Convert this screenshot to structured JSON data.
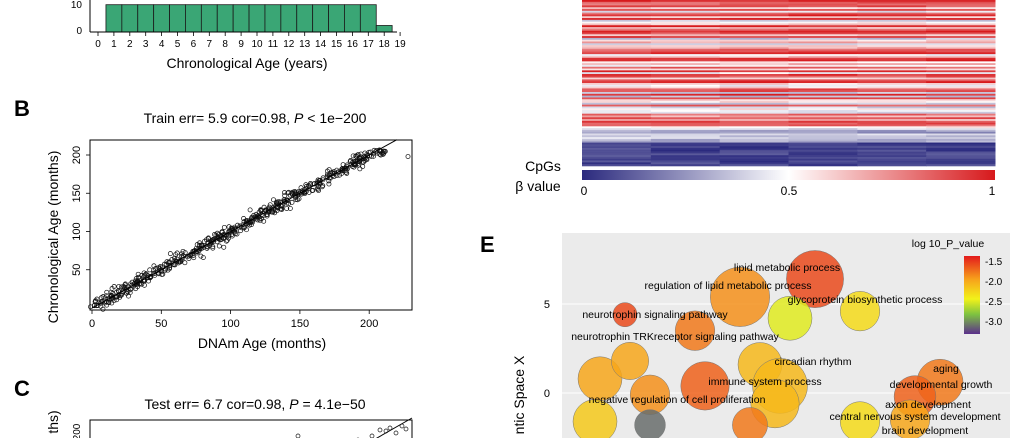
{
  "panelA": {
    "xlabel": "Chronological Age (years)",
    "yticks": [
      "10",
      "0"
    ],
    "categories": [
      "0",
      "1",
      "2",
      "3",
      "4",
      "5",
      "6",
      "7",
      "8",
      "9",
      "10",
      "11",
      "12",
      "13",
      "14",
      "15",
      "16",
      "17",
      "18",
      "19"
    ],
    "bar_color": "#3aa675"
  },
  "panelB": {
    "letter": "B",
    "title_prefix": "Train err= 5.9 cor=0.98, ",
    "title_p": "P",
    "title_suffix": " < 1e−200",
    "xlabel": "DNAm Age (months)",
    "ylabel": "Chronological Age (months)",
    "xticks": [
      "0",
      "50",
      "100",
      "150",
      "200"
    ],
    "yticks": [
      "50",
      "100",
      "150",
      "200"
    ]
  },
  "panelC": {
    "letter": "C",
    "title_prefix": "Test err= 6.7 cor=0.98, ",
    "title_p": "P",
    "title_suffix": " = 4.1e−50",
    "ylabel_partial": "ths)",
    "ytick": "200"
  },
  "panelD": {
    "row_label": "CpGs",
    "scale_label": "β value",
    "scale_ticks": [
      "0",
      "0.5",
      "1"
    ],
    "colors": {
      "low": "#2b2a7e",
      "mid": "#ffffff",
      "high": "#d7191c"
    }
  },
  "panelE": {
    "letter": "E",
    "ylabel_partial": "ntic Space X",
    "yticks": [
      "5",
      "0"
    ],
    "legend_title": "log 10_P_value",
    "legend_ticks": [
      "-1.5",
      "-2.0",
      "-2.5",
      "-3.0"
    ],
    "terms": [
      "lipid metabolic process",
      "regulation of lipid metabolic process",
      "glycoprotein biosynthetic process",
      "neurotrophin signaling pathway",
      "neurotrophin TRKreceptor signaling pathway",
      "circadian rhythm",
      "aging",
      "immune system process",
      "developmental growth",
      "negative regulation of cell proliferation",
      "axon development",
      "central nervous system development",
      "brain development"
    ]
  },
  "chart_data": [
    {
      "type": "bar",
      "panel": "A",
      "categories": [
        "1",
        "2",
        "3",
        "4",
        "5",
        "6",
        "7",
        "8",
        "9",
        "10",
        "11",
        "12",
        "13",
        "14",
        "15",
        "16",
        "17",
        "18"
      ],
      "values": [
        21,
        21,
        21,
        21,
        21,
        21,
        21,
        21,
        21,
        21,
        21,
        21,
        21,
        21,
        21,
        21,
        21,
        5
      ],
      "xlabel": "Chronological Age (years)",
      "xlim": [
        0,
        19
      ],
      "ylim": [
        0,
        23
      ]
    },
    {
      "type": "scatter",
      "panel": "B",
      "title": "Train err= 5.9 cor=0.98, P < 1e−200",
      "xlabel": "DNAm Age (months)",
      "ylabel": "Chronological Age (months)",
      "xlim": [
        0,
        230
      ],
      "ylim": [
        0,
        220
      ],
      "fit_line": {
        "x": [
          0,
          220
        ],
        "y": [
          0,
          220
        ]
      }
    },
    {
      "type": "scatter",
      "panel": "C",
      "title": "Test err= 6.7 cor=0.98, P = 4.1e−50"
    },
    {
      "type": "heatmap",
      "panel": "D",
      "ylabel": "CpGs",
      "colorbar": {
        "label": "β value",
        "min": 0,
        "mid": 0.5,
        "max": 1
      }
    },
    {
      "type": "scatter",
      "panel": "E",
      "ylabel": "Semantic Space X",
      "legend_title": "log 10_P_value",
      "color_range": [
        -3.2,
        -1.3
      ],
      "points": [
        {
          "x": 4.7,
          "y": 6.4,
          "size": 1.3,
          "log10p": -1.5
        },
        {
          "x": 3.2,
          "y": 5.4,
          "size": 1.35,
          "log10p": -1.8
        },
        {
          "x": 4.2,
          "y": 4.2,
          "size": 1.0,
          "log10p": -2.4
        },
        {
          "x": 5.6,
          "y": 4.6,
          "size": 0.9,
          "log10p": -2.2
        },
        {
          "x": 2.3,
          "y": 3.5,
          "size": 0.9,
          "log10p": -1.7
        },
        {
          "x": 3.6,
          "y": 1.6,
          "size": 1.0,
          "log10p": -2.0
        },
        {
          "x": 4.0,
          "y": 0.4,
          "size": 1.25,
          "log10p": -2.0
        },
        {
          "x": 2.5,
          "y": 0.4,
          "size": 1.1,
          "log10p": -1.6
        },
        {
          "x": 3.9,
          "y": -0.6,
          "size": 1.1,
          "log10p": -2.0
        },
        {
          "x": 0.4,
          "y": 0.8,
          "size": 1.0,
          "log10p": -1.9
        },
        {
          "x": 1.4,
          "y": -0.1,
          "size": 0.9,
          "log10p": -1.8
        },
        {
          "x": 1.0,
          "y": 1.8,
          "size": 0.85,
          "log10p": -1.9
        },
        {
          "x": 7.2,
          "y": 0.6,
          "size": 1.05,
          "log10p": -1.7
        },
        {
          "x": 6.7,
          "y": -0.2,
          "size": 0.95,
          "log10p": -1.6
        },
        {
          "x": 5.6,
          "y": -1.6,
          "size": 0.9,
          "log10p": -2.2
        },
        {
          "x": 6.6,
          "y": -1.5,
          "size": 0.9,
          "log10p": -1.9
        },
        {
          "x": 0.9,
          "y": 4.4,
          "size": 0.55,
          "log10p": -1.5
        },
        {
          "x": 0.3,
          "y": -1.6,
          "size": 1.0,
          "log10p": -2.1
        },
        {
          "x": 1.4,
          "y": -1.8,
          "size": 0.7,
          "log10p": -3.0
        },
        {
          "x": 3.4,
          "y": -1.8,
          "size": 0.8,
          "log10p": -1.7
        }
      ]
    }
  ]
}
